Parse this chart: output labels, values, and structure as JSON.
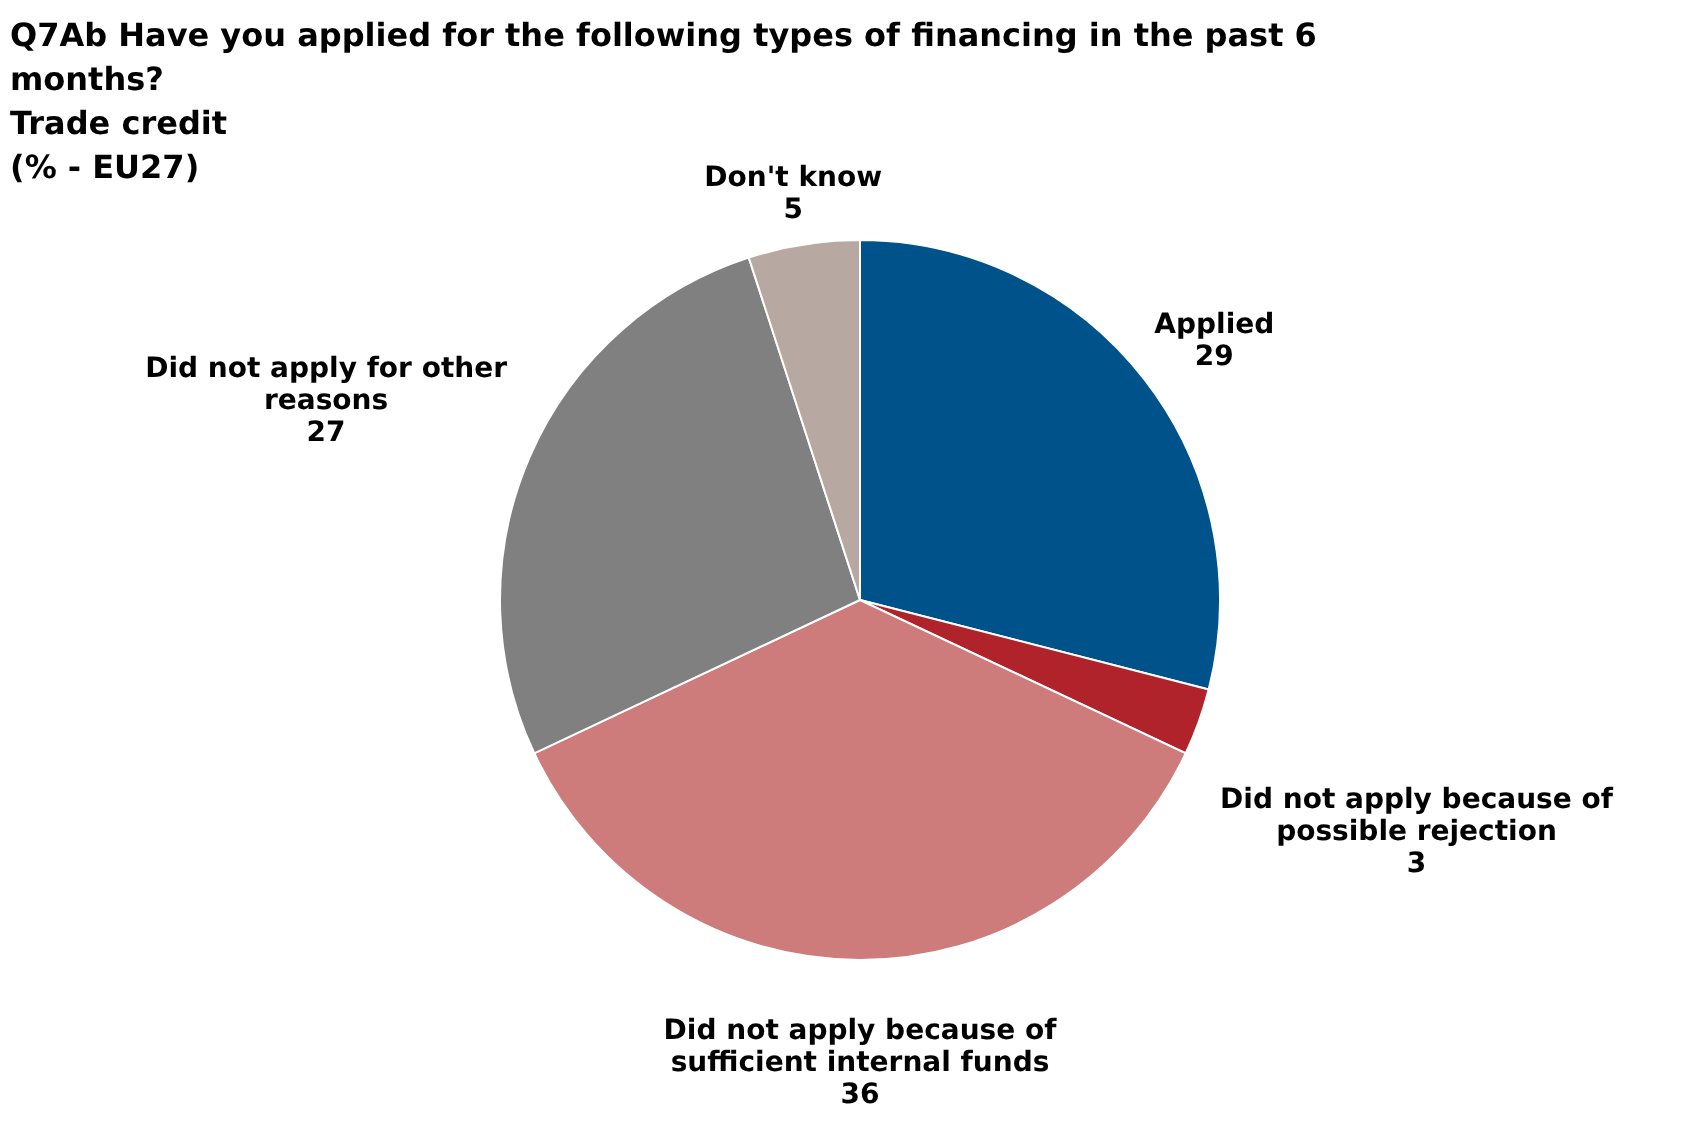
{
  "chart_data": {
    "type": "pie",
    "title": "Q7Ab Have you applied for the following types of financing in the past 6 months?",
    "subtitle": "Trade credit (% - EU27)",
    "categories": [
      "Applied",
      "Did not apply because of possible rejection",
      "Did not apply because of sufficient internal funds",
      "Did not apply for other reasons",
      "Don't know"
    ],
    "values": [
      29,
      3,
      36,
      27,
      5
    ],
    "colors": [
      "#00538a",
      "#b0232a",
      "#cd7b7b",
      "#808080",
      "#b7a9a2"
    ],
    "data_labels": true
  }
}
